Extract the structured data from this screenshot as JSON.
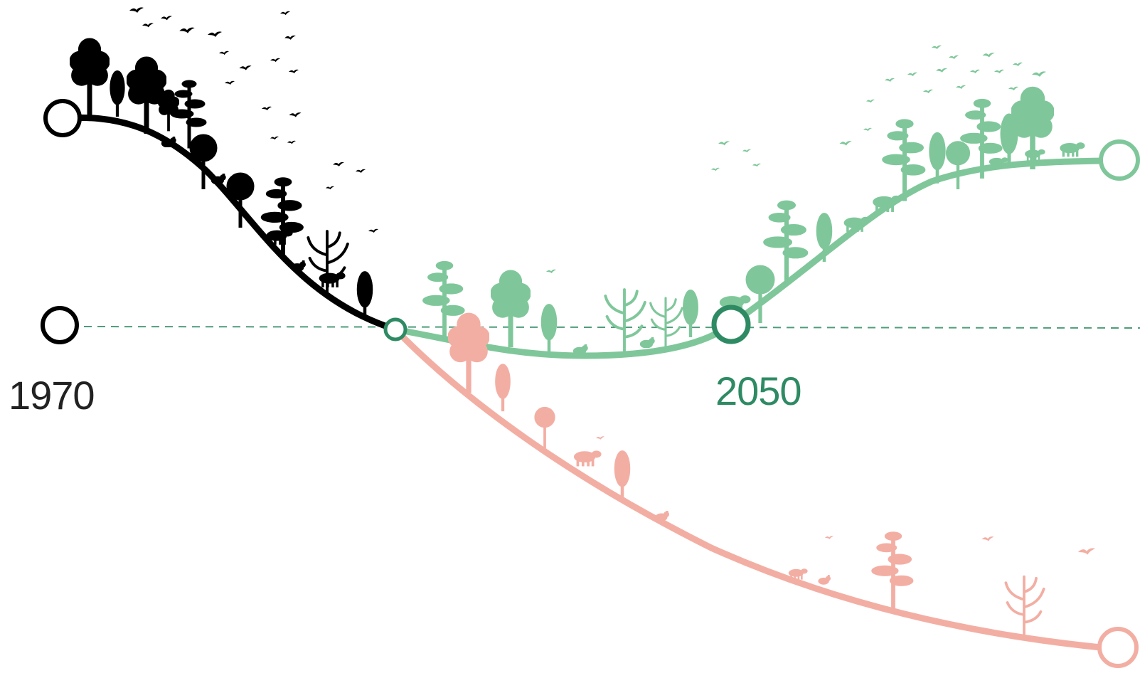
{
  "labels": {
    "start_year": "1970",
    "target_year": "2050"
  },
  "colors": {
    "past": "#000000",
    "recovery": "#7fc79a",
    "recovery_dark": "#2e8a63",
    "decline": "#f3aea3",
    "baseline": "#4e9c7a"
  },
  "icons": {
    "past": [
      "tree",
      "tree-round",
      "poplar-tree",
      "pine-tree",
      "bird",
      "wild-boar",
      "bear",
      "bare-tree"
    ],
    "recovery": [
      "tree",
      "pine-tree",
      "poplar-tree",
      "round-tree",
      "bare-tree",
      "deer",
      "bison",
      "wolf",
      "rabbit",
      "bird"
    ],
    "decline": [
      "tree",
      "poplar-tree",
      "round-tree",
      "fox",
      "rabbit",
      "pine-tree",
      "bare-tree",
      "bird"
    ]
  }
}
